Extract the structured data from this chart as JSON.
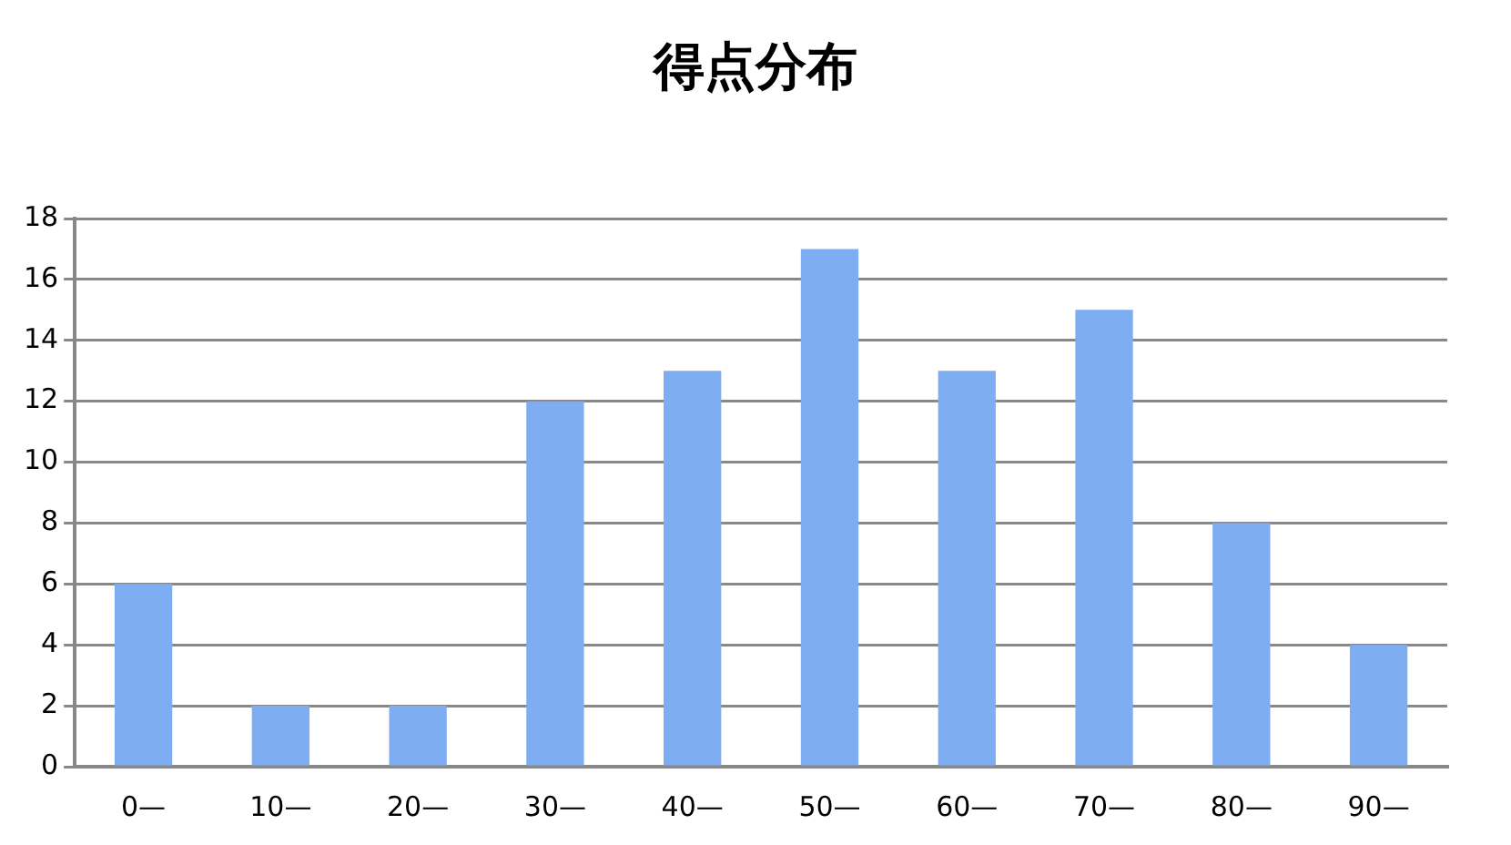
{
  "chart_data": {
    "type": "bar",
    "title": "得点分布",
    "categories": [
      "0—",
      "10—",
      "20—",
      "30—",
      "40—",
      "50—",
      "60—",
      "70—",
      "80—",
      "90—"
    ],
    "values": [
      6,
      2,
      2,
      12,
      13,
      17,
      13,
      15,
      8,
      4
    ],
    "color": "#7fadf2",
    "ylim": [
      0,
      18
    ],
    "yticks": [
      0,
      2,
      4,
      6,
      8,
      10,
      12,
      14,
      16,
      18
    ],
    "grid": "y",
    "legend": false
  }
}
